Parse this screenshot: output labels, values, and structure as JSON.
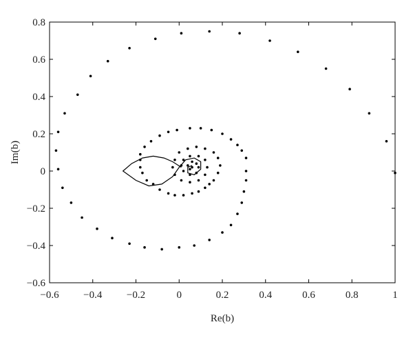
{
  "chart_data": {
    "type": "scatter",
    "x_label": "Re(b)",
    "y_label": "Im(b)",
    "xlim": [
      -0.6,
      1
    ],
    "ylim": [
      -0.6,
      0.8
    ],
    "xticks": [
      {
        "value": -0.6,
        "label": "−0.6"
      },
      {
        "value": -0.4,
        "label": "−0.4"
      },
      {
        "value": -0.2,
        "label": "−0.2"
      },
      0,
      0.2,
      0.4,
      0.6,
      0.8,
      1
    ],
    "yticks": [
      {
        "value": -0.6,
        "label": "−0.6"
      },
      {
        "value": -0.4,
        "label": "−0.4"
      },
      {
        "value": -0.2,
        "label": "−0.2"
      },
      0,
      0.2,
      0.4,
      0.6,
      0.8
    ],
    "series": [
      {
        "style": "markers",
        "color": "#000000",
        "x": [
          1.0,
          0.96,
          0.88,
          0.79,
          0.68,
          0.55,
          0.42,
          0.28,
          0.14,
          0.01,
          -0.11,
          -0.23,
          -0.33,
          -0.41,
          -0.47,
          -0.53,
          -0.56,
          -0.57,
          -0.56,
          -0.54,
          -0.5,
          -0.45,
          -0.38,
          -0.31,
          -0.23,
          -0.16,
          -0.08,
          0.0,
          0.07,
          0.14,
          0.2,
          0.24,
          0.27,
          0.29,
          0.3,
          0.31,
          0.31,
          0.31,
          0.29,
          0.27,
          0.24,
          0.2,
          0.15,
          0.1,
          0.05,
          -0.01,
          -0.05,
          -0.09,
          -0.13,
          -0.16,
          -0.18,
          -0.18,
          -0.18,
          -0.17,
          -0.15,
          -0.12,
          -0.09,
          -0.05,
          -0.02,
          0.02,
          0.06,
          0.09,
          0.12,
          0.14,
          0.16,
          0.18,
          0.19,
          0.18,
          0.16,
          0.12,
          0.08,
          0.04,
          0.0,
          -0.02,
          -0.03,
          -0.02,
          0.01,
          0.05,
          0.09,
          0.12,
          0.13,
          0.12,
          0.09,
          0.05,
          0.02,
          0.01,
          0.02,
          0.05,
          0.08,
          0.09,
          0.08,
          0.06,
          0.04,
          0.05,
          0.06
        ],
        "y": [
          -0.01,
          0.16,
          0.31,
          0.44,
          0.55,
          0.64,
          0.7,
          0.74,
          0.75,
          0.74,
          0.71,
          0.66,
          0.59,
          0.51,
          0.41,
          0.31,
          0.21,
          0.11,
          0.01,
          -0.09,
          -0.17,
          -0.25,
          -0.31,
          -0.36,
          -0.39,
          -0.41,
          -0.42,
          -0.41,
          -0.4,
          -0.37,
          -0.33,
          -0.29,
          -0.23,
          -0.17,
          -0.11,
          -0.05,
          0.0,
          0.07,
          0.11,
          0.14,
          0.17,
          0.2,
          0.22,
          0.23,
          0.23,
          0.22,
          0.21,
          0.19,
          0.16,
          0.13,
          0.09,
          0.06,
          0.02,
          -0.01,
          -0.05,
          -0.07,
          -0.1,
          -0.12,
          -0.13,
          -0.13,
          -0.12,
          -0.11,
          -0.09,
          -0.07,
          -0.05,
          -0.01,
          0.03,
          0.07,
          0.1,
          0.12,
          0.13,
          0.12,
          0.1,
          0.06,
          0.02,
          -0.02,
          -0.05,
          -0.06,
          -0.05,
          -0.02,
          0.02,
          0.06,
          0.08,
          0.08,
          0.06,
          0.03,
          0.0,
          -0.02,
          -0.01,
          0.02,
          0.04,
          0.05,
          0.03,
          0.01,
          0.02
        ]
      },
      {
        "style": "line",
        "color": "#000000",
        "x": [
          0.01,
          -0.03,
          -0.07,
          -0.12,
          -0.17,
          -0.22,
          -0.26,
          -0.2,
          -0.14,
          -0.08,
          -0.03,
          0.0,
          0.03,
          0.07,
          0.1,
          0.1,
          0.07,
          0.04,
          0.04,
          0.06
        ],
        "y": [
          0.02,
          0.05,
          0.07,
          0.08,
          0.07,
          0.04,
          0.0,
          -0.05,
          -0.08,
          -0.07,
          -0.03,
          0.02,
          0.06,
          0.07,
          0.05,
          0.01,
          -0.02,
          -0.01,
          0.02,
          0.03
        ]
      }
    ]
  }
}
